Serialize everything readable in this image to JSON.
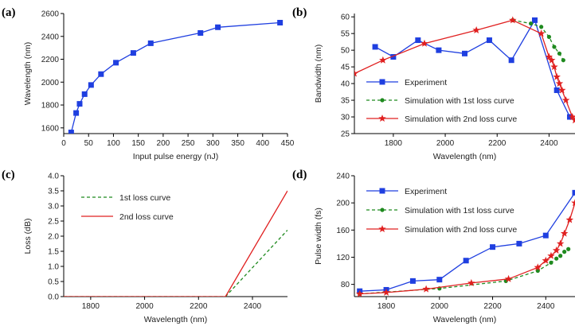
{
  "colors": {
    "blue": "#1f3fe0",
    "green": "#1f8a1f",
    "red": "#e02020",
    "axis": "#000000"
  },
  "chart_data": [
    {
      "panel": "(a)",
      "type": "line",
      "xlabel": "Input pulse energy (nJ)",
      "ylabel": "Wavelength (nm)",
      "xlim": [
        0,
        450
      ],
      "ylim": [
        1550,
        2600
      ],
      "xticks": [
        0,
        50,
        100,
        150,
        200,
        250,
        300,
        350,
        400,
        450
      ],
      "yticks": [
        1600,
        1800,
        2000,
        2200,
        2400,
        2600
      ],
      "series": [
        {
          "color": "blue",
          "marker": "square",
          "dash": "",
          "x": [
            15,
            25,
            32,
            42,
            55,
            75,
            105,
            140,
            175,
            275,
            310,
            435
          ],
          "y": [
            1560,
            1730,
            1810,
            1895,
            1975,
            2070,
            2170,
            2255,
            2340,
            2430,
            2480,
            2520
          ]
        }
      ]
    },
    {
      "panel": "(b)",
      "type": "line",
      "xlabel": "Wavelength (nm)",
      "ylabel": "Bandwidth (nm)",
      "xlim": [
        1650,
        2500
      ],
      "ylim": [
        25,
        61
      ],
      "xticks": [
        1800,
        2000,
        2200,
        2400
      ],
      "yticks": [
        25,
        30,
        35,
        40,
        45,
        50,
        55,
        60
      ],
      "legend": {
        "position": "bottom-left"
      },
      "series": [
        {
          "name": "Experiment",
          "color": "blue",
          "marker": "square",
          "dash": "",
          "x": [
            1730,
            1800,
            1895,
            1975,
            2075,
            2170,
            2255,
            2345,
            2430,
            2480
          ],
          "y": [
            51,
            48,
            53,
            50,
            49,
            53,
            47,
            59,
            38,
            30
          ]
        },
        {
          "name": "Simulation with 1st loss curve",
          "color": "green",
          "marker": "circle",
          "dash": "4,3",
          "x": [
            2260,
            2330,
            2370,
            2400,
            2420,
            2440,
            2455
          ],
          "y": [
            59,
            58,
            57,
            54,
            51,
            49,
            47
          ]
        },
        {
          "name": "Simulation with 2nd loss curve",
          "color": "red",
          "marker": "star",
          "dash": "",
          "x": [
            1650,
            1760,
            1920,
            2120,
            2260,
            2370,
            2400,
            2410,
            2420,
            2430,
            2440,
            2450,
            2465,
            2490,
            2500
          ],
          "y": [
            43,
            47,
            52,
            56,
            59,
            55,
            48,
            47,
            45,
            42,
            40,
            38,
            35,
            30,
            29
          ]
        }
      ]
    },
    {
      "panel": "(c)",
      "type": "line",
      "xlabel": "Wavelength (nm)",
      "ylabel": "Loss (dB)",
      "xlim": [
        1700,
        2530
      ],
      "ylim": [
        0,
        4.0
      ],
      "xticks": [
        1800,
        2000,
        2200,
        2400
      ],
      "yticks": [
        0.0,
        0.5,
        1.0,
        1.5,
        2.0,
        2.5,
        3.0,
        3.5,
        4.0
      ],
      "legend": {
        "position": "top-left"
      },
      "series": [
        {
          "name": "1st loss curve",
          "color": "green",
          "marker": "",
          "dash": "4,3",
          "x": [
            1700,
            2300,
            2530
          ],
          "y": [
            0,
            0,
            2.2
          ]
        },
        {
          "name": "2nd loss curve",
          "color": "red",
          "marker": "",
          "dash": "",
          "x": [
            1700,
            2300,
            2530
          ],
          "y": [
            0,
            0,
            3.5
          ]
        }
      ]
    },
    {
      "panel": "(d)",
      "type": "line",
      "xlabel": "Wavelength (nm)",
      "ylabel": "Pulse width (fs)",
      "xlim": [
        1680,
        2510
      ],
      "ylim": [
        62,
        240
      ],
      "xticks": [
        1800,
        2000,
        2200,
        2400
      ],
      "yticks": [
        80,
        120,
        160,
        200,
        240
      ],
      "legend": {
        "position": "top-left"
      },
      "series": [
        {
          "name": "Experiment",
          "color": "blue",
          "marker": "square",
          "dash": "",
          "x": [
            1700,
            1800,
            1900,
            2000,
            2100,
            2200,
            2300,
            2400,
            2510
          ],
          "y": [
            70,
            72,
            85,
            87,
            115,
            135,
            140,
            152,
            215
          ]
        },
        {
          "name": "Simulation with 1st loss curve",
          "color": "green",
          "marker": "circle",
          "dash": "4,3",
          "x": [
            1700,
            2000,
            2250,
            2370,
            2420,
            2440,
            2455,
            2470,
            2485
          ],
          "y": [
            66,
            74,
            85,
            100,
            112,
            118,
            122,
            128,
            132
          ]
        },
        {
          "name": "Simulation with 2nd loss curve",
          "color": "red",
          "marker": "star",
          "dash": "",
          "x": [
            1700,
            1800,
            1950,
            2120,
            2260,
            2370,
            2400,
            2420,
            2440,
            2455,
            2470,
            2490,
            2510
          ],
          "y": [
            66,
            68,
            73,
            82,
            88,
            105,
            115,
            122,
            130,
            140,
            155,
            175,
            200
          ]
        }
      ]
    }
  ]
}
